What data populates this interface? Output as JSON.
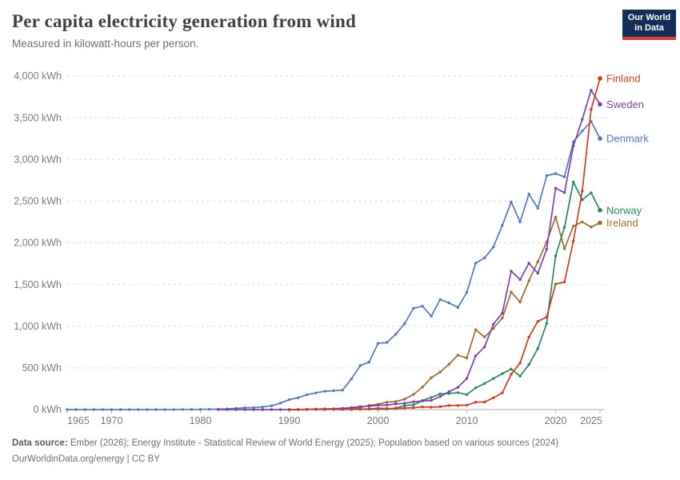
{
  "header": {
    "title": "Per capita electricity generation from wind",
    "subtitle": "Measured in kilowatt-hours per person.",
    "logo": {
      "line1": "Our World",
      "line2": "in Data",
      "bg_color": "#132f57",
      "bar_color": "#dc3e3b"
    }
  },
  "footer": {
    "source_label": "Data source:",
    "source_text": " Ember (2026); Energy Institute - Statistical Review of World Energy (2025); Population based on various sources (2024)",
    "link_text": "OurWorldinData.org/energy",
    "license_text": " | CC BY"
  },
  "chart_data": {
    "type": "line",
    "title": "Per capita electricity generation from wind",
    "ylabel": "",
    "xlabel": "",
    "unit": "kWh",
    "grid": true,
    "legend_position": "end-of-line labels, right side",
    "x_axis": {
      "start_year": 1965,
      "end_year": 2025,
      "ticks": [
        1965,
        1970,
        1980,
        1990,
        2000,
        2010,
        2020,
        2025
      ]
    },
    "y_axis": {
      "min": 0,
      "max": 4000,
      "step": 500,
      "tick_suffix": " kWh"
    },
    "series": [
      {
        "name": "Denmark",
        "color": "#5878b3",
        "start_year": 1965,
        "values": [
          0,
          0,
          0,
          0,
          0,
          0,
          0,
          0,
          0,
          0,
          0,
          0,
          1,
          2,
          2,
          3,
          4,
          6,
          9,
          14,
          22,
          24,
          32,
          45,
          78,
          119,
          142,
          178,
          200,
          220,
          226,
          233,
          367,
          528,
          570,
          794,
          805,
          905,
          1030,
          1215,
          1240,
          1120,
          1320,
          1280,
          1225,
          1405,
          1755,
          1820,
          1950,
          2210,
          2490,
          2250,
          2585,
          2415,
          2805,
          2830,
          2790,
          3210,
          3340,
          3455,
          3250
        ]
      },
      {
        "name": "Ireland",
        "color": "#996d39",
        "start_year": 1990,
        "values": [
          0,
          0,
          4,
          5,
          5,
          5,
          6,
          14,
          24,
          51,
          64,
          88,
          97,
          125,
          182,
          269,
          383,
          450,
          545,
          653,
          620,
          958,
          870,
          974,
          1097,
          1410,
          1290,
          1545,
          1773,
          2010,
          2310,
          1930,
          2200,
          2250,
          2190,
          2240
        ]
      },
      {
        "name": "Norway",
        "color": "#2c8465",
        "start_year": 1993,
        "values": [
          2,
          2,
          3,
          2,
          3,
          4,
          6,
          7,
          6,
          17,
          49,
          57,
          108,
          146,
          189,
          193,
          203,
          180,
          261,
          313,
          372,
          432,
          484,
          402,
          540,
          732,
          1032,
          1844,
          2185,
          2730,
          2515,
          2600,
          2390
        ]
      },
      {
        "name": "Sweden",
        "color": "#7d42a5",
        "start_year": 1982,
        "values": [
          0,
          0,
          0,
          0,
          0,
          0,
          0,
          0,
          1,
          2,
          3,
          6,
          9,
          11,
          16,
          24,
          36,
          41,
          52,
          54,
          68,
          76,
          94,
          104,
          109,
          156,
          215,
          267,
          373,
          645,
          752,
          1025,
          1158,
          1660,
          1560,
          1755,
          1635,
          1925,
          2655,
          2600,
          3160,
          3480,
          3830,
          3660
        ]
      },
      {
        "name": "Finland",
        "color": "#c63d22",
        "start_year": 1990,
        "values": [
          0,
          0,
          1,
          2,
          2,
          2,
          2,
          3,
          5,
          9,
          15,
          13,
          12,
          18,
          23,
          32,
          29,
          35,
          49,
          50,
          54,
          89,
          91,
          142,
          201,
          425,
          558,
          871,
          1058,
          1110,
          1505,
          1530,
          2020,
          2620,
          3600,
          3970
        ]
      }
    ]
  }
}
